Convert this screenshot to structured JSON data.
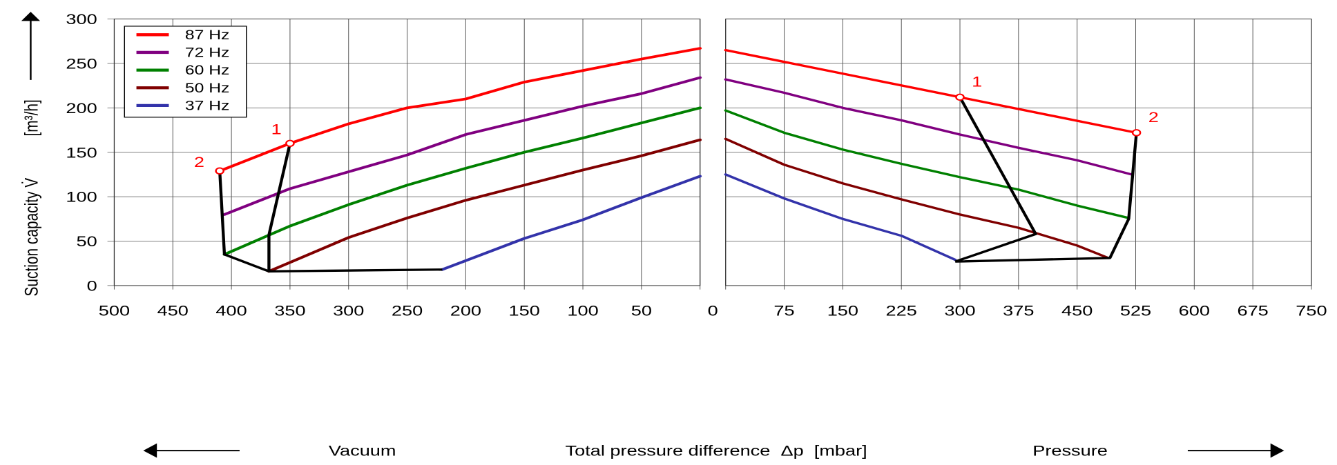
{
  "chart_data": [
    {
      "type": "line",
      "panel": "vacuum",
      "xlim": [
        500,
        0
      ],
      "ylim": [
        0,
        300
      ],
      "x_ticks": [
        500,
        450,
        400,
        350,
        300,
        250,
        200,
        150,
        100,
        50
      ],
      "y_ticks": [
        0,
        50,
        100,
        150,
        200,
        250,
        300
      ],
      "grid": true,
      "series": [
        {
          "name": "87 Hz",
          "color": "#ff0000",
          "points": [
            [
              410,
              129
            ],
            [
              350,
              160
            ],
            [
              300,
              182
            ],
            [
              250,
              200
            ],
            [
              200,
              210
            ],
            [
              150,
              229
            ],
            [
              100,
              242
            ],
            [
              50,
              255
            ],
            [
              0,
              267
            ]
          ]
        },
        {
          "name": "72 Hz",
          "color": "#800080",
          "points": [
            [
              406,
              80
            ],
            [
              350,
              109
            ],
            [
              300,
              128
            ],
            [
              250,
              147
            ],
            [
              200,
              170
            ],
            [
              150,
              186
            ],
            [
              100,
              202
            ],
            [
              50,
              216
            ],
            [
              0,
              234
            ]
          ]
        },
        {
          "name": "60 Hz",
          "color": "#008000",
          "points": [
            [
              406,
              35
            ],
            [
              350,
              67
            ],
            [
              300,
              91
            ],
            [
              250,
              113
            ],
            [
              200,
              132
            ],
            [
              150,
              150
            ],
            [
              100,
              166
            ],
            [
              50,
              183
            ],
            [
              0,
              200
            ]
          ]
        },
        {
          "name": "50 Hz",
          "color": "#800000",
          "points": [
            [
              368,
              16
            ],
            [
              350,
              26
            ],
            [
              300,
              54
            ],
            [
              250,
              76
            ],
            [
              200,
              96
            ],
            [
              150,
              113
            ],
            [
              100,
              130
            ],
            [
              50,
              146
            ],
            [
              0,
              164
            ]
          ]
        },
        {
          "name": "37 Hz",
          "color": "#3333aa",
          "points": [
            [
              220,
              18
            ],
            [
              200,
              28
            ],
            [
              150,
              53
            ],
            [
              100,
              74
            ],
            [
              50,
              99
            ],
            [
              0,
              123
            ]
          ]
        }
      ],
      "limit_lines": [
        [
          [
            410,
            129
          ],
          [
            406,
            35
          ],
          [
            368,
            16
          ],
          [
            220,
            18
          ]
        ],
        [
          [
            350,
            160
          ],
          [
            368,
            57
          ],
          [
            368,
            16
          ]
        ]
      ],
      "markers": [
        {
          "label": "1",
          "point": [
            350,
            160
          ]
        },
        {
          "label": "2",
          "point": [
            410,
            129
          ]
        }
      ]
    },
    {
      "type": "line",
      "panel": "pressure",
      "xlim": [
        0,
        750
      ],
      "ylim": [
        0,
        300
      ],
      "x_ticks": [
        75,
        150,
        225,
        300,
        375,
        450,
        525,
        600,
        675,
        750
      ],
      "grid": true,
      "series": [
        {
          "name": "87 Hz",
          "color": "#ff0000",
          "points": [
            [
              0,
              265
            ],
            [
              300,
              212
            ],
            [
              526,
              172
            ]
          ]
        },
        {
          "name": "72 Hz",
          "color": "#800080",
          "points": [
            [
              0,
              232
            ],
            [
              75,
              217
            ],
            [
              150,
              200
            ],
            [
              225,
              186
            ],
            [
              300,
              170
            ],
            [
              375,
              155
            ],
            [
              450,
              141
            ],
            [
              520,
              125
            ]
          ]
        },
        {
          "name": "60 Hz",
          "color": "#008000",
          "points": [
            [
              0,
              197
            ],
            [
              75,
              172
            ],
            [
              150,
              153
            ],
            [
              225,
              137
            ],
            [
              300,
              122
            ],
            [
              375,
              108
            ],
            [
              450,
              90
            ],
            [
              516,
              76
            ]
          ]
        },
        {
          "name": "50 Hz",
          "color": "#800000",
          "points": [
            [
              0,
              165
            ],
            [
              75,
              136
            ],
            [
              150,
              115
            ],
            [
              225,
              97
            ],
            [
              300,
              80
            ],
            [
              375,
              65
            ],
            [
              450,
              45
            ],
            [
              490,
              31
            ]
          ]
        },
        {
          "name": "37 Hz",
          "color": "#3333aa",
          "points": [
            [
              0,
              125
            ],
            [
              75,
              98
            ],
            [
              150,
              75
            ],
            [
              225,
              56
            ],
            [
              294,
              29
            ]
          ]
        }
      ],
      "limit_lines": [
        [
          [
            300,
            212
          ],
          [
            397,
            58
          ],
          [
            294,
            27
          ]
        ],
        [
          [
            526,
            172
          ],
          [
            516,
            75
          ],
          [
            492,
            31
          ],
          [
            294,
            27
          ]
        ]
      ],
      "markers": [
        {
          "label": "1",
          "point": [
            300,
            212
          ]
        },
        {
          "label": "2",
          "point": [
            526,
            172
          ]
        }
      ]
    }
  ],
  "zero_label": "0",
  "ylabel": "Suction capacity V̇",
  "yunit": "[m³/h]",
  "xlabel": "Total pressure difference  Δp  [mbar]",
  "vacuum_label": "Vacuum",
  "pressure_label": "Pressure",
  "legend": {
    "placement": "top-left",
    "entries": [
      "87 Hz",
      "72 Hz",
      "60 Hz",
      "50 Hz",
      "37 Hz"
    ]
  }
}
